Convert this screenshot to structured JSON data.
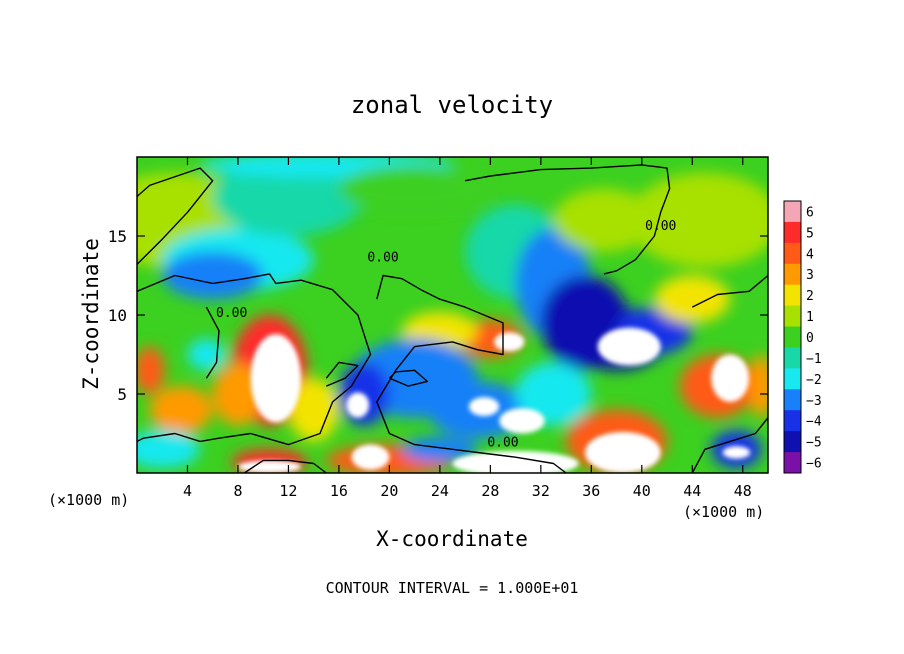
{
  "chart_data": {
    "type": "heatmap",
    "title": "zonal velocity",
    "xlabel": "X-coordinate",
    "ylabel": "Z-coordinate",
    "x_unit_label_left": "(×1000 m)",
    "x_unit_label_right": "(×1000 m)",
    "footer": "CONTOUR INTERVAL = 1.000E+01",
    "xlim": [
      0,
      50
    ],
    "ylim": [
      0,
      20
    ],
    "x_ticks": [
      4,
      8,
      12,
      16,
      20,
      24,
      28,
      32,
      36,
      40,
      44,
      48
    ],
    "y_ticks": [
      5,
      10,
      15
    ],
    "colorbar": {
      "ticks": [
        6,
        5,
        4,
        3,
        2,
        1,
        0,
        -1,
        -2,
        -3,
        -4,
        -5,
        -6
      ],
      "tick_labels": [
        "6",
        "5",
        "4",
        "3",
        "2",
        "1",
        "0",
        "−1",
        "−2",
        "−3",
        "−4",
        "−5",
        "−6"
      ],
      "colors": [
        "#f4a6b4",
        "#ff2a2a",
        "#ff5a18",
        "#ff9a00",
        "#f2e400",
        "#a8e000",
        "#3cd020",
        "#18d8a8",
        "#18e8f0",
        "#1880f8",
        "#1830e8",
        "#1010b0",
        "#7a10a8"
      ]
    },
    "contour_labels": [
      "0.00",
      "0.00",
      "0.00",
      "0.00"
    ],
    "contour_label_positions": [
      [
        7.5,
        10
      ],
      [
        19.5,
        13.5
      ],
      [
        41.5,
        15.5
      ],
      [
        29,
        1.8
      ]
    ],
    "blobs": [
      {
        "x": 3,
        "y": 16,
        "rx": 7,
        "ry": 3,
        "v": 0.5
      },
      {
        "x": 8,
        "y": 13.5,
        "rx": 6,
        "ry": 2,
        "v": -2.5
      },
      {
        "x": 6,
        "y": 12.5,
        "rx": 4,
        "ry": 1.5,
        "v": -3
      },
      {
        "x": 12,
        "y": 17.5,
        "rx": 6,
        "ry": 2.5,
        "v": -1
      },
      {
        "x": 15,
        "y": 19.5,
        "rx": 10,
        "ry": 0.8,
        "v": -2
      },
      {
        "x": 30,
        "y": 14,
        "rx": 4,
        "ry": 3,
        "v": -1.5
      },
      {
        "x": 33,
        "y": 12,
        "rx": 3,
        "ry": 3.5,
        "v": -3.5
      },
      {
        "x": 35.5,
        "y": 9.5,
        "rx": 3.5,
        "ry": 3,
        "v": -5
      },
      {
        "x": 38,
        "y": 8.5,
        "rx": 4,
        "ry": 2,
        "v": -5.5
      },
      {
        "x": 41,
        "y": 9,
        "rx": 3,
        "ry": 1.5,
        "v": -4
      },
      {
        "x": 39,
        "y": 8,
        "rx": 2.5,
        "ry": 1.2,
        "v": 6.8
      },
      {
        "x": 37,
        "y": 16,
        "rx": 4,
        "ry": 2,
        "v": 1
      },
      {
        "x": 45,
        "y": 16,
        "rx": 6,
        "ry": 3,
        "v": 0.6
      },
      {
        "x": 10.5,
        "y": 6.5,
        "rx": 3,
        "ry": 3.5,
        "v": 4.5
      },
      {
        "x": 11,
        "y": 6,
        "rx": 2,
        "ry": 2.8,
        "v": 6.8
      },
      {
        "x": 8,
        "y": 5,
        "rx": 2,
        "ry": 2,
        "v": 3
      },
      {
        "x": 14,
        "y": 4,
        "rx": 2,
        "ry": 2,
        "v": 2
      },
      {
        "x": 3.5,
        "y": 4,
        "rx": 2.5,
        "ry": 1.5,
        "v": 3
      },
      {
        "x": 1,
        "y": 6.5,
        "rx": 1.2,
        "ry": 1.5,
        "v": 4
      },
      {
        "x": 5.5,
        "y": 7.5,
        "rx": 1.5,
        "ry": 1,
        "v": -2.5
      },
      {
        "x": 28,
        "y": 8.5,
        "rx": 2.5,
        "ry": 1.2,
        "v": 4
      },
      {
        "x": 29.5,
        "y": 8.3,
        "rx": 1.2,
        "ry": 0.6,
        "v": 6.8
      },
      {
        "x": 24,
        "y": 9,
        "rx": 3,
        "ry": 1.2,
        "v": 1.5
      },
      {
        "x": 22,
        "y": 6,
        "rx": 5,
        "ry": 2.5,
        "v": -3.5
      },
      {
        "x": 18,
        "y": 5,
        "rx": 2,
        "ry": 2,
        "v": -4
      },
      {
        "x": 17.5,
        "y": 4.3,
        "rx": 0.9,
        "ry": 0.8,
        "v": 6.8
      },
      {
        "x": 27,
        "y": 4,
        "rx": 4,
        "ry": 1.8,
        "v": -3
      },
      {
        "x": 27.5,
        "y": 4.2,
        "rx": 1.2,
        "ry": 0.6,
        "v": 6.8
      },
      {
        "x": 30.5,
        "y": 3.3,
        "rx": 1.8,
        "ry": 0.8,
        "v": 6.8
      },
      {
        "x": 33,
        "y": 5,
        "rx": 3,
        "ry": 2,
        "v": -2
      },
      {
        "x": 20,
        "y": 0.8,
        "rx": 5,
        "ry": 1,
        "v": 4
      },
      {
        "x": 18.5,
        "y": 1,
        "rx": 1.5,
        "ry": 0.8,
        "v": 6.8
      },
      {
        "x": 10.5,
        "y": 0.7,
        "rx": 3,
        "ry": 0.8,
        "v": 5
      },
      {
        "x": 10.5,
        "y": 0.4,
        "rx": 2.5,
        "ry": 0.4,
        "v": 6.8
      },
      {
        "x": 30,
        "y": 0.6,
        "rx": 5,
        "ry": 0.8,
        "v": 6.8
      },
      {
        "x": 38.5,
        "y": 1.3,
        "rx": 3,
        "ry": 1.3,
        "v": 6.8
      },
      {
        "x": 38,
        "y": 2,
        "rx": 4,
        "ry": 2,
        "v": 4
      },
      {
        "x": 46,
        "y": 5.5,
        "rx": 3,
        "ry": 2,
        "v": 4
      },
      {
        "x": 47,
        "y": 6,
        "rx": 1.5,
        "ry": 1.5,
        "v": 6.8
      },
      {
        "x": 49.5,
        "y": 5.5,
        "rx": 1,
        "ry": 2,
        "v": 3
      },
      {
        "x": 47.5,
        "y": 1.5,
        "rx": 2,
        "ry": 1.2,
        "v": -4
      },
      {
        "x": 47.5,
        "y": 1.3,
        "rx": 1.1,
        "ry": 0.4,
        "v": 6.8
      },
      {
        "x": 2,
        "y": 1.5,
        "rx": 3,
        "ry": 1.2,
        "v": -2.5
      },
      {
        "x": 24,
        "y": 1.5,
        "rx": 3,
        "ry": 0.8,
        "v": -3
      },
      {
        "x": 44,
        "y": 11,
        "rx": 3,
        "ry": 1.5,
        "v": 2
      },
      {
        "x": 22,
        "y": 18,
        "rx": 6,
        "ry": 1.5,
        "v": -0.5
      }
    ],
    "contours": [
      [
        [
          0,
          13.2
        ],
        [
          2,
          14.8
        ],
        [
          4,
          16.5
        ],
        [
          6,
          18.5
        ],
        [
          5,
          19.3
        ],
        [
          1,
          18.2
        ],
        [
          0,
          17.5
        ]
      ],
      [
        [
          0,
          11.5
        ],
        [
          3,
          12.5
        ],
        [
          6,
          12
        ],
        [
          8.5,
          12.3
        ],
        [
          10.5,
          12.6
        ],
        [
          11,
          12
        ],
        [
          13,
          12.2
        ],
        [
          15.5,
          11.6
        ],
        [
          17.5,
          10
        ],
        [
          18.5,
          7.5
        ],
        [
          17,
          5.5
        ],
        [
          15.5,
          4.5
        ],
        [
          14.5,
          2.5
        ],
        [
          12,
          1.8
        ],
        [
          9,
          2.5
        ],
        [
          6.5,
          2.2
        ],
        [
          5,
          2
        ],
        [
          3,
          2.5
        ],
        [
          0.5,
          2.2
        ],
        [
          0,
          2
        ]
      ],
      [
        [
          5.5,
          10.5
        ],
        [
          6.5,
          9
        ],
        [
          6.3,
          7
        ],
        [
          5.5,
          6
        ]
      ],
      [
        [
          8.5,
          0
        ],
        [
          10,
          0.8
        ],
        [
          12,
          0.8
        ],
        [
          14,
          0.6
        ],
        [
          15,
          0
        ]
      ],
      [
        [
          34,
          0
        ],
        [
          33,
          0.6
        ],
        [
          30,
          1
        ],
        [
          27,
          1.3
        ],
        [
          25,
          1.5
        ],
        [
          22,
          1.8
        ],
        [
          20,
          2.5
        ],
        [
          19,
          4.5
        ],
        [
          20.5,
          6.5
        ],
        [
          22,
          8
        ],
        [
          25,
          8.3
        ],
        [
          27,
          7.8
        ],
        [
          29,
          7.5
        ],
        [
          29,
          9.5
        ],
        [
          26,
          10.5
        ],
        [
          24,
          11
        ],
        [
          22.5,
          11.6
        ],
        [
          21,
          12.3
        ],
        [
          19.5,
          12.5
        ],
        [
          19,
          11
        ]
      ],
      [
        [
          26,
          18.5
        ],
        [
          28,
          18.8
        ],
        [
          30,
          19
        ],
        [
          32,
          19.2
        ],
        [
          36,
          19.3
        ],
        [
          40,
          19.5
        ],
        [
          42,
          19.3
        ],
        [
          42.2,
          18
        ],
        [
          41.5,
          16.5
        ],
        [
          41,
          15
        ],
        [
          39.5,
          13.5
        ],
        [
          38,
          12.8
        ],
        [
          37,
          12.6
        ]
      ],
      [
        [
          20,
          6
        ],
        [
          21.5,
          5.5
        ],
        [
          23,
          5.8
        ],
        [
          22,
          6.5
        ],
        [
          20.5,
          6.4
        ],
        [
          20,
          6
        ]
      ],
      [
        [
          15,
          5.5
        ],
        [
          16.5,
          6
        ],
        [
          17.5,
          6.8
        ],
        [
          16,
          7
        ],
        [
          15,
          6
        ]
      ],
      [
        [
          44,
          10.5
        ],
        [
          46,
          11.3
        ],
        [
          48.5,
          11.5
        ],
        [
          50,
          12.5
        ]
      ],
      [
        [
          44,
          0
        ],
        [
          45,
          1.5
        ],
        [
          47,
          2
        ],
        [
          49,
          2.5
        ],
        [
          50,
          3.5
        ]
      ]
    ]
  }
}
